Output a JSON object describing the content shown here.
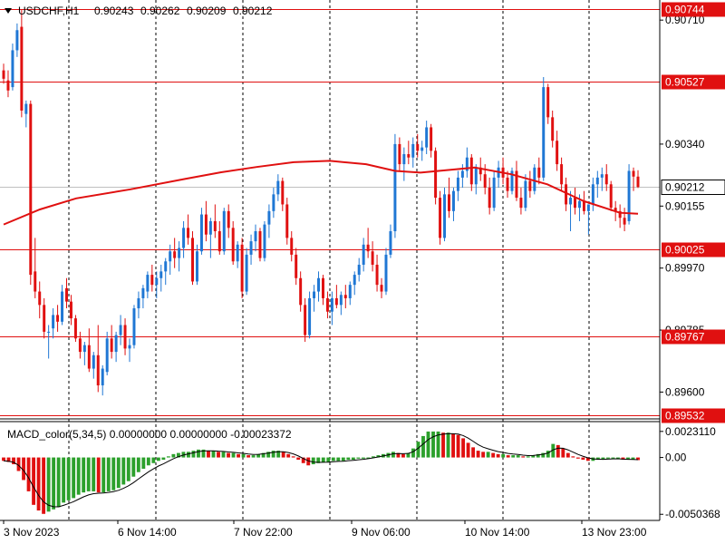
{
  "header": {
    "symbol": "USDCHF,H1",
    "ohlc": [
      "0.90243",
      "0.90262",
      "0.90209",
      "0.90212"
    ]
  },
  "macd_header": {
    "label": "MACD_color(5,34,5) 0.00000000 0.00000000 -0.00023372"
  },
  "colors": {
    "bull": "#1f77d4",
    "bear": "#e01010",
    "ma": "#e01010",
    "level": "#e01010",
    "grid": "#000000",
    "macd_up": "#2ca02c",
    "macd_down": "#e01010",
    "current_price_bg": "#ffffff"
  },
  "chart_data": [
    {
      "type": "candlestick",
      "title": "USDCHF,H1",
      "price_ticks": [
        "0.90710",
        "0.90340",
        "0.90155",
        "0.89970",
        "0.89785",
        "0.89600"
      ],
      "price_tick_values": [
        0.9071,
        0.9034,
        0.90155,
        0.8997,
        0.89785,
        0.896
      ],
      "ylim": [
        0.8952,
        0.9077
      ],
      "levels": [
        {
          "label": "0.90744",
          "value": 0.90744
        },
        {
          "label": "0.90527",
          "value": 0.90527
        },
        {
          "label": "0.90025",
          "value": 0.90025
        },
        {
          "label": "0.89767",
          "value": 0.89767
        },
        {
          "label": "0.89532",
          "value": 0.89532
        }
      ],
      "current_price": {
        "label": "0.90212",
        "value": 0.90212
      },
      "x_labels": [
        "3 Nov 2023",
        "6 Nov 14:00",
        "7 Nov 22:00",
        "9 Nov 06:00",
        "10 Nov 14:00",
        "13 Nov 23:00"
      ],
      "grid": "vertical dotted",
      "moving_average": [
        [
          0,
          0.901
        ],
        [
          10,
          0.90145
        ],
        [
          20,
          0.90178
        ],
        [
          35,
          0.90205
        ],
        [
          50,
          0.90236
        ],
        [
          60,
          0.90256
        ],
        [
          70,
          0.90272
        ],
        [
          80,
          0.90286
        ],
        [
          90,
          0.9029
        ],
        [
          100,
          0.9028
        ],
        [
          108,
          0.9026
        ],
        [
          115,
          0.90255
        ],
        [
          125,
          0.90265
        ],
        [
          130,
          0.9027
        ],
        [
          140,
          0.9025
        ],
        [
          150,
          0.9022
        ],
        [
          160,
          0.9017
        ],
        [
          170,
          0.90135
        ],
        [
          175,
          0.90132
        ]
      ],
      "candles": [
        [
          0.9056,
          0.9058,
          0.9052,
          0.90535
        ],
        [
          0.9053,
          0.9056,
          0.9048,
          0.905
        ],
        [
          0.9051,
          0.9064,
          0.905,
          0.9062
        ],
        [
          0.9062,
          0.907,
          0.906,
          0.9068
        ],
        [
          0.9069,
          0.9074,
          0.9042,
          0.9044
        ],
        [
          0.9043,
          0.9047,
          0.9039,
          0.9046
        ],
        [
          0.9046,
          0.9047,
          0.8992,
          0.8995
        ],
        [
          0.8996,
          0.9006,
          0.8988,
          0.899
        ],
        [
          0.899,
          0.8993,
          0.8982,
          0.8986
        ],
        [
          0.8986,
          0.8988,
          0.8976,
          0.8978
        ],
        [
          0.8978,
          0.898,
          0.897,
          0.8978
        ],
        [
          0.8979,
          0.8985,
          0.8976,
          0.8983
        ],
        [
          0.8983,
          0.8986,
          0.8978,
          0.8981
        ],
        [
          0.8981,
          0.8992,
          0.898,
          0.899
        ],
        [
          0.8991,
          0.8994,
          0.8985,
          0.8987
        ],
        [
          0.8987,
          0.8989,
          0.898,
          0.8982
        ],
        [
          0.8982,
          0.8983,
          0.8975,
          0.8976
        ],
        [
          0.8976,
          0.8978,
          0.897,
          0.8972
        ],
        [
          0.8972,
          0.8975,
          0.8968,
          0.8974
        ],
        [
          0.8974,
          0.8979,
          0.8966,
          0.8967
        ],
        [
          0.8967,
          0.8972,
          0.8964,
          0.8971
        ],
        [
          0.8971,
          0.898,
          0.896,
          0.8962
        ],
        [
          0.8962,
          0.8968,
          0.8959,
          0.8967
        ],
        [
          0.8966,
          0.8978,
          0.8965,
          0.8976
        ],
        [
          0.8976,
          0.898,
          0.897,
          0.8972
        ],
        [
          0.8972,
          0.8978,
          0.8969,
          0.8977
        ],
        [
          0.8977,
          0.8983,
          0.8974,
          0.898
        ],
        [
          0.898,
          0.8982,
          0.8971,
          0.8973
        ],
        [
          0.8973,
          0.8976,
          0.8969,
          0.8974
        ],
        [
          0.8974,
          0.8986,
          0.8973,
          0.8985
        ],
        [
          0.8985,
          0.899,
          0.8982,
          0.8988
        ],
        [
          0.8988,
          0.8992,
          0.8985,
          0.8991
        ],
        [
          0.899,
          0.8996,
          0.8988,
          0.8995
        ],
        [
          0.8995,
          0.8998,
          0.899,
          0.8992
        ],
        [
          0.8992,
          0.8996,
          0.8988,
          0.8994
        ],
        [
          0.8994,
          0.8998,
          0.899,
          0.8996
        ],
        [
          0.8996,
          0.9,
          0.8992,
          0.8999
        ],
        [
          0.8999,
          0.9004,
          0.8995,
          0.9002
        ],
        [
          0.9002,
          0.9006,
          0.8997,
          0.9
        ],
        [
          0.9,
          0.9005,
          0.8996,
          0.9003
        ],
        [
          0.9003,
          0.9011,
          0.9,
          0.9009
        ],
        [
          0.9009,
          0.9013,
          0.9004,
          0.9006
        ],
        [
          0.9006,
          0.9008,
          0.8992,
          0.8993
        ],
        [
          0.8993,
          0.9004,
          0.8992,
          0.9002
        ],
        [
          0.9002,
          0.9015,
          0.9001,
          0.9013
        ],
        [
          0.9013,
          0.9017,
          0.9005,
          0.9007
        ],
        [
          0.9007,
          0.9012,
          0.9,
          0.9011
        ],
        [
          0.9011,
          0.9016,
          0.9006,
          0.9008
        ],
        [
          0.9008,
          0.9011,
          0.9001,
          0.9002
        ],
        [
          0.9002,
          0.9015,
          0.9001,
          0.9014
        ],
        [
          0.9014,
          0.9016,
          0.9006,
          0.9009
        ],
        [
          0.9009,
          0.9011,
          0.8998,
          0.8999
        ],
        [
          0.8999,
          0.9005,
          0.8997,
          0.9004
        ],
        [
          0.9004,
          0.9006,
          0.8988,
          0.899
        ],
        [
          0.899,
          0.9003,
          0.8989,
          0.9001
        ],
        [
          0.9001,
          0.9007,
          0.8998,
          0.9005
        ],
        [
          0.9005,
          0.901,
          0.9002,
          0.9008
        ],
        [
          0.9008,
          0.9009,
          0.8999,
          0.9
        ],
        [
          0.9,
          0.9011,
          0.8999,
          0.901
        ],
        [
          0.901,
          0.9016,
          0.9006,
          0.9014
        ],
        [
          0.9014,
          0.9021,
          0.9012,
          0.9019
        ],
        [
          0.9019,
          0.9025,
          0.9017,
          0.9023
        ],
        [
          0.9023,
          0.9024,
          0.9014,
          0.9016
        ],
        [
          0.9016,
          0.9018,
          0.9004,
          0.9006
        ],
        [
          0.9006,
          0.9008,
          0.8999,
          0.9001
        ],
        [
          0.9001,
          0.9003,
          0.8992,
          0.8994
        ],
        [
          0.8994,
          0.8996,
          0.8984,
          0.8986
        ],
        [
          0.8986,
          0.8988,
          0.8975,
          0.8977
        ],
        [
          0.8977,
          0.899,
          0.8976,
          0.8988
        ],
        [
          0.8988,
          0.8992,
          0.8984,
          0.899
        ],
        [
          0.899,
          0.8996,
          0.8987,
          0.8994
        ],
        [
          0.8994,
          0.8995,
          0.8986,
          0.8988
        ],
        [
          0.8988,
          0.899,
          0.8982,
          0.8984
        ],
        [
          0.8984,
          0.899,
          0.898,
          0.8988
        ],
        [
          0.8988,
          0.8992,
          0.8985,
          0.8986
        ],
        [
          0.8986,
          0.899,
          0.8983,
          0.8989
        ],
        [
          0.8989,
          0.8992,
          0.8985,
          0.8988
        ],
        [
          0.8988,
          0.8993,
          0.8986,
          0.8992
        ],
        [
          0.8992,
          0.8996,
          0.8989,
          0.8995
        ],
        [
          0.8995,
          0.9,
          0.8993,
          0.8998
        ],
        [
          0.8998,
          0.9006,
          0.8996,
          0.9004
        ],
        [
          0.9004,
          0.9009,
          0.9,
          0.9002
        ],
        [
          0.9002,
          0.9005,
          0.8996,
          0.8998
        ],
        [
          0.8998,
          0.9001,
          0.899,
          0.8992
        ],
        [
          0.8992,
          0.8994,
          0.8988,
          0.899
        ],
        [
          0.899,
          0.9003,
          0.8989,
          0.9001
        ],
        [
          0.9001,
          0.901,
          0.9,
          0.9008
        ],
        [
          0.9008,
          0.9037,
          0.9006,
          0.9034
        ],
        [
          0.9034,
          0.9036,
          0.9026,
          0.9028
        ],
        [
          0.9028,
          0.9033,
          0.9023,
          0.9031
        ],
        [
          0.9031,
          0.9035,
          0.9028,
          0.903
        ],
        [
          0.903,
          0.9036,
          0.9027,
          0.9034
        ],
        [
          0.9034,
          0.9037,
          0.903,
          0.9032
        ],
        [
          0.9032,
          0.9035,
          0.9029,
          0.9033
        ],
        [
          0.9033,
          0.9041,
          0.9031,
          0.9039
        ],
        [
          0.9039,
          0.904,
          0.903,
          0.9032
        ],
        [
          0.9032,
          0.9033,
          0.9016,
          0.9018
        ],
        [
          0.9018,
          0.902,
          0.9004,
          0.9006
        ],
        [
          0.9006,
          0.9021,
          0.9005,
          0.9019
        ],
        [
          0.9019,
          0.9024,
          0.9012,
          0.9014
        ],
        [
          0.9014,
          0.9021,
          0.9011,
          0.902
        ],
        [
          0.902,
          0.9026,
          0.9017,
          0.9024
        ],
        [
          0.9024,
          0.9028,
          0.9021,
          0.9026
        ],
        [
          0.9026,
          0.9033,
          0.9024,
          0.903
        ],
        [
          0.903,
          0.9031,
          0.902,
          0.9022
        ],
        [
          0.9022,
          0.9028,
          0.9019,
          0.9027
        ],
        [
          0.9027,
          0.903,
          0.9023,
          0.9025
        ],
        [
          0.9025,
          0.9028,
          0.9019,
          0.9021
        ],
        [
          0.9021,
          0.9024,
          0.9013,
          0.9015
        ],
        [
          0.9015,
          0.9026,
          0.9014,
          0.9024
        ],
        [
          0.9024,
          0.9029,
          0.9021,
          0.9027
        ],
        [
          0.9027,
          0.903,
          0.9022,
          0.9024
        ],
        [
          0.9024,
          0.9026,
          0.9018,
          0.902
        ],
        [
          0.902,
          0.9027,
          0.9019,
          0.9026
        ],
        [
          0.9026,
          0.9029,
          0.9017,
          0.9018
        ],
        [
          0.9018,
          0.9021,
          0.9013,
          0.9015
        ],
        [
          0.9015,
          0.9025,
          0.9014,
          0.9023
        ],
        [
          0.9023,
          0.9026,
          0.9018,
          0.902
        ],
        [
          0.902,
          0.9028,
          0.9019,
          0.9027
        ],
        [
          0.9027,
          0.903,
          0.9022,
          0.9024
        ],
        [
          0.9024,
          0.9054,
          0.9023,
          0.9051
        ],
        [
          0.9051,
          0.9052,
          0.904,
          0.9042
        ],
        [
          0.9042,
          0.9044,
          0.9033,
          0.9035
        ],
        [
          0.9035,
          0.9038,
          0.9026,
          0.9028
        ],
        [
          0.9028,
          0.903,
          0.902,
          0.9022
        ],
        [
          0.9022,
          0.9024,
          0.9014,
          0.9016
        ],
        [
          0.9016,
          0.902,
          0.9008,
          0.9018
        ],
        [
          0.9018,
          0.9021,
          0.9013,
          0.9015
        ],
        [
          0.9015,
          0.9019,
          0.9011,
          0.9017
        ],
        [
          0.9017,
          0.902,
          0.9013,
          0.9014
        ],
        [
          0.9014,
          0.9016,
          0.9007,
          0.9016
        ],
        [
          0.9016,
          0.9024,
          0.9014,
          0.9022
        ],
        [
          0.9022,
          0.9026,
          0.9018,
          0.9024
        ],
        [
          0.9024,
          0.9027,
          0.902,
          0.9025
        ],
        [
          0.9025,
          0.9028,
          0.902,
          0.9022
        ],
        [
          0.9022,
          0.9023,
          0.9014,
          0.9015
        ],
        [
          0.9015,
          0.9017,
          0.9011,
          0.9014
        ],
        [
          0.9014,
          0.9016,
          0.9009,
          0.9012
        ],
        [
          0.9012,
          0.9015,
          0.9008,
          0.901
        ],
        [
          0.9011,
          0.9028,
          0.901,
          0.9026
        ],
        [
          0.9026,
          0.9027,
          0.902,
          0.90243
        ],
        [
          0.90243,
          0.90262,
          0.90209,
          0.90212
        ]
      ]
    },
    {
      "type": "bar",
      "title": "MACD_color(5,34,5)",
      "y_ticks": [
        "0.0023110",
        "0.00",
        "-0.0050368"
      ],
      "y_tick_values": [
        0.002311,
        0.0,
        -0.0050368
      ],
      "ylim": [
        -0.0055,
        0.0031
      ],
      "histogram": [
        -0.0003,
        -0.0004,
        -0.0006,
        -0.0012,
        -0.002,
        -0.003,
        -0.0042,
        -0.0047,
        -0.005,
        -0.0048,
        -0.0046,
        -0.0044,
        -0.004,
        -0.0038,
        -0.0036,
        -0.0033,
        -0.0031,
        -0.003,
        -0.003,
        -0.0031,
        -0.0031,
        -0.003,
        -0.0029,
        -0.0027,
        -0.0024,
        -0.0021,
        -0.0017,
        -0.0013,
        -0.001,
        -0.0007,
        -0.0005,
        -0.0003,
        -0.0002,
        0.0001,
        0.0003,
        0.0004,
        0.0005,
        0.0005,
        0.0006,
        0.0007,
        0.0007,
        0.0006,
        0.0006,
        0.0005,
        0.0005,
        0.0004,
        0.0004,
        0.0003,
        0.0003,
        0.0002,
        0.0002,
        0.0003,
        0.0004,
        0.0005,
        0.0006,
        0.0006,
        0.0005,
        0.0003,
        0.0001,
        -0.0002,
        -0.0005,
        -0.0007,
        -0.0006,
        -0.0005,
        -0.0004,
        -0.0004,
        -0.0003,
        -0.0003,
        -0.0003,
        -0.0002,
        -0.0002,
        -0.0001,
        -0.0001,
        0.0,
        0.0001,
        0.0002,
        0.0003,
        0.0004,
        0.0005,
        0.0004,
        0.0003,
        0.0004,
        0.0008,
        0.0014,
        0.0019,
        0.0023,
        0.0023,
        0.0023,
        0.0022,
        0.0022,
        0.0021,
        0.002,
        0.0017,
        0.0013,
        0.0009,
        0.0006,
        0.0005,
        0.0005,
        0.0004,
        0.0003,
        0.0003,
        0.0002,
        0.0002,
        0.0002,
        0.0001,
        0.0001,
        0.0002,
        0.0003,
        0.0004,
        0.0006,
        0.0012,
        0.0011,
        0.0008,
        0.0004,
        0.0001,
        -0.0001,
        -0.0002,
        -0.0003,
        -0.0003,
        -0.0002,
        -0.0002,
        -0.0001,
        -0.0001,
        -0.0001,
        -0.0002,
        -0.0002,
        -0.0002,
        -0.00023372
      ]
    }
  ]
}
